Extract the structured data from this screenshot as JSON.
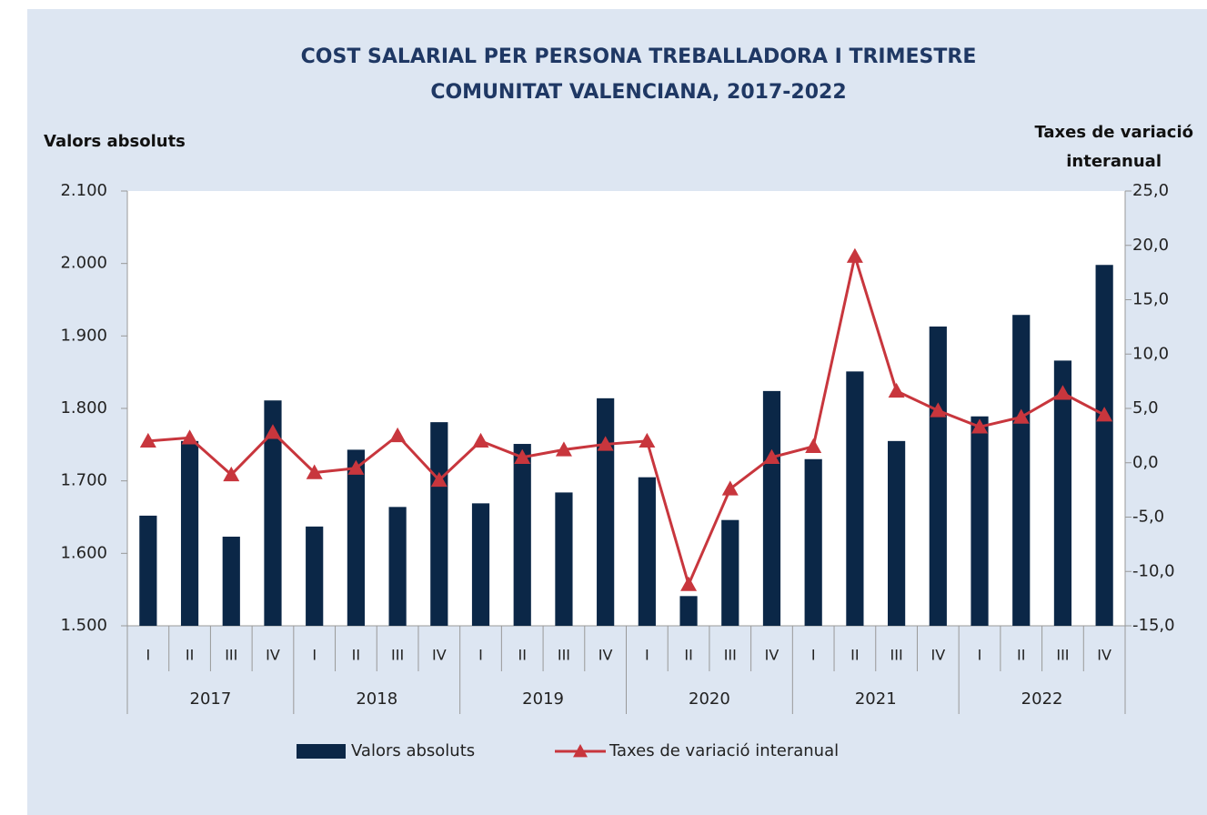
{
  "chart_data": {
    "type": "bar_line",
    "title": [
      "COST SALARIAL PER PERSONA TREBALLADORA I TRIMESTRE",
      "COMUNITAT VALENCIANA, 2017-2022"
    ],
    "ylabel": "Valors absoluts",
    "y2label": [
      "Taxes de variació",
      "interanual"
    ],
    "categories": [
      "I",
      "II",
      "III",
      "IV",
      "I",
      "II",
      "III",
      "IV",
      "I",
      "II",
      "III",
      "IV",
      "I",
      "II",
      "III",
      "IV",
      "I",
      "II",
      "III",
      "IV",
      "I",
      "II",
      "III",
      "IV"
    ],
    "groups": [
      "2017",
      "2018",
      "2019",
      "2020",
      "2021",
      "2022"
    ],
    "series": [
      {
        "name": "Valors absoluts",
        "type": "bar",
        "color": "#0b2747",
        "values": [
          1652,
          1755,
          1623,
          1811,
          1637,
          1743,
          1664,
          1781,
          1669,
          1751,
          1684,
          1814,
          1705,
          1541,
          1646,
          1824,
          1730,
          1851,
          1755,
          1913,
          1789,
          1929,
          1866,
          1998
        ]
      },
      {
        "name": "Taxes de variació interanual",
        "type": "line",
        "axis": "y2",
        "color": "#c8363d",
        "values": [
          2.0,
          2.3,
          -1.1,
          2.8,
          -0.9,
          -0.5,
          2.5,
          -1.6,
          2.0,
          0.5,
          1.2,
          1.7,
          2.0,
          -11.2,
          -2.4,
          0.5,
          1.5,
          19.0,
          6.6,
          4.8,
          3.3,
          4.2,
          6.4,
          4.4
        ]
      }
    ],
    "ylim": [
      1500,
      2100
    ],
    "yticks": [
      {
        "value": 1500,
        "label": "1.500"
      },
      {
        "value": 1600,
        "label": "1.600"
      },
      {
        "value": 1700,
        "label": "1.700"
      },
      {
        "value": 1800,
        "label": "1.800"
      },
      {
        "value": 1900,
        "label": "1.900"
      },
      {
        "value": 2000,
        "label": "2.000"
      },
      {
        "value": 2100,
        "label": "2.100"
      }
    ],
    "y2lim": [
      -15,
      25
    ],
    "y2ticks": [
      {
        "value": -15,
        "label": "-15,0"
      },
      {
        "value": -10,
        "label": "-10,0"
      },
      {
        "value": -5,
        "label": "-5,0"
      },
      {
        "value": 0,
        "label": "0,0"
      },
      {
        "value": 5,
        "label": "5,0"
      },
      {
        "value": 10,
        "label": "10,0"
      },
      {
        "value": 15,
        "label": "15,0"
      },
      {
        "value": 20,
        "label": "20,0"
      },
      {
        "value": 25,
        "label": "25,0"
      }
    ],
    "grid": false,
    "legend": "bottom"
  }
}
